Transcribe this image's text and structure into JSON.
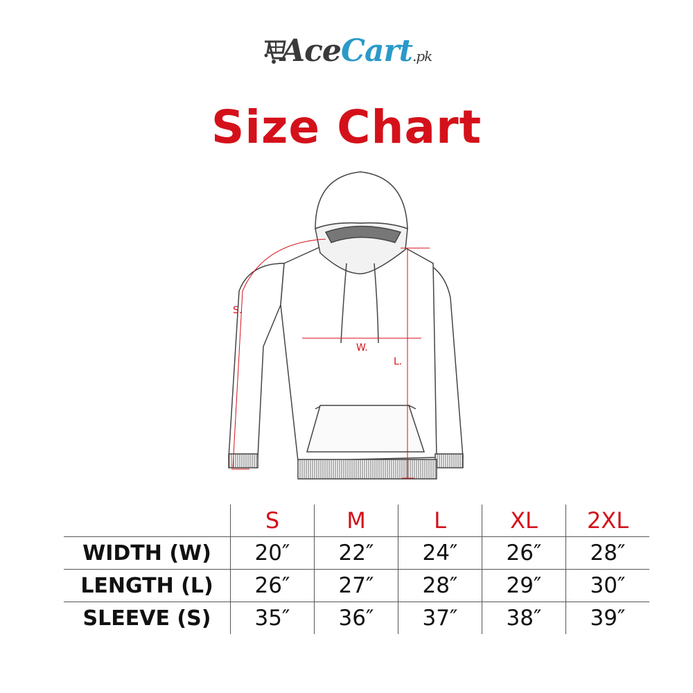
{
  "logo": {
    "part1": "Ace",
    "part2": "Cart",
    "suffix": ".pk",
    "icon": "shopping-cart-icon",
    "colors": {
      "dark": "#3a3a3a",
      "blue": "#2a9ac9"
    }
  },
  "title": "Size Chart",
  "diagram": {
    "labels": {
      "sleeve": "S.",
      "width": "W.",
      "length": "L."
    },
    "accent": "#d4111a"
  },
  "table": {
    "sizes": [
      "S",
      "M",
      "L",
      "XL",
      "2XL"
    ],
    "rows": [
      {
        "label": "WIDTH (W)",
        "values": [
          "20″",
          "22″",
          "24″",
          "26″",
          "28″"
        ]
      },
      {
        "label": "LENGTH (L)",
        "values": [
          "26″",
          "27″",
          "28″",
          "29″",
          "30″"
        ]
      },
      {
        "label": "SLEEVE (S)",
        "values": [
          "35″",
          "36″",
          "37″",
          "38″",
          "39″"
        ]
      }
    ]
  }
}
